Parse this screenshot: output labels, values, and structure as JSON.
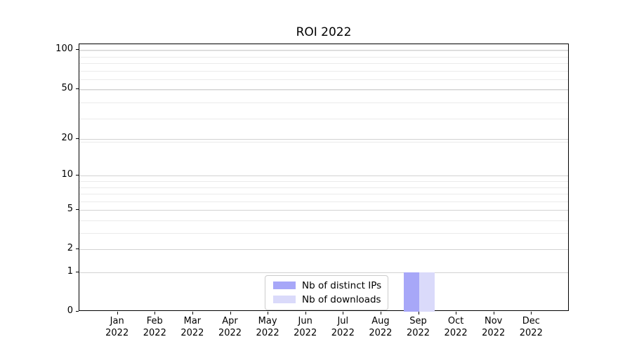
{
  "chart_data": {
    "type": "bar",
    "title": "ROI 2022",
    "x_axis": {
      "months": [
        "Jan",
        "Feb",
        "Mar",
        "Apr",
        "May",
        "Jun",
        "Jul",
        "Aug",
        "Sep",
        "Oct",
        "Nov",
        "Dec"
      ],
      "year": "2022"
    },
    "y_axis": {
      "scale": "log1p",
      "min": 0,
      "max": 111,
      "major_ticks": [
        100,
        50,
        20,
        10,
        5,
        2,
        1,
        0
      ],
      "minor_ticks": [
        1,
        2,
        3,
        4,
        5,
        6,
        7,
        8,
        9,
        19,
        29,
        39,
        49,
        59,
        69,
        79,
        89,
        99
      ],
      "grid": "both"
    },
    "series": [
      {
        "name": "Nb of distinct IPs",
        "color": "#a7a7f8",
        "values": [
          0,
          0,
          0,
          0,
          0,
          0,
          0,
          0,
          1,
          0,
          0,
          0
        ]
      },
      {
        "name": "Nb of downloads",
        "color": "#dadafa",
        "values": [
          0,
          0,
          0,
          0,
          0,
          0,
          0,
          0,
          1,
          0,
          0,
          0
        ]
      }
    ],
    "legend": {
      "position": "lower center"
    }
  }
}
